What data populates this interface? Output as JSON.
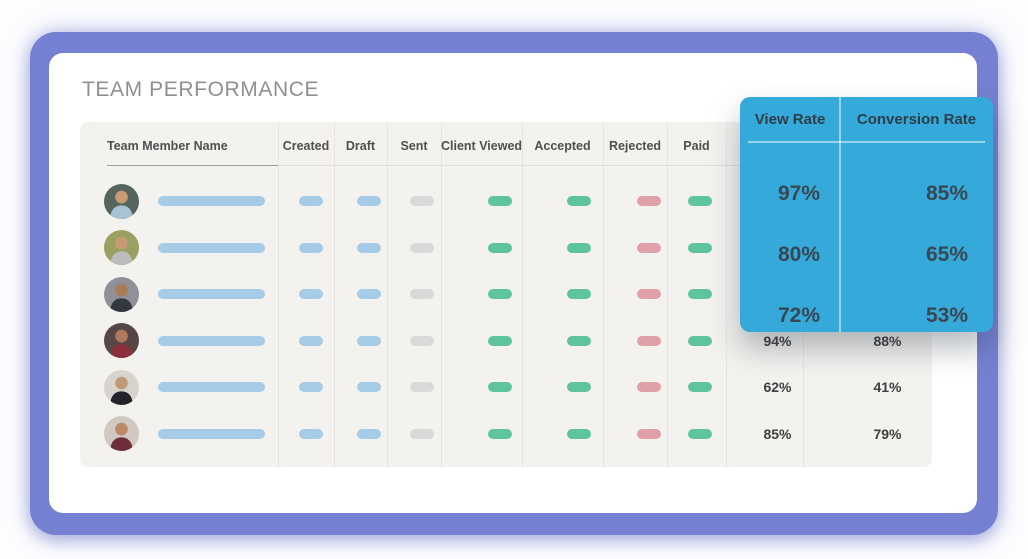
{
  "title": "TEAM PERFORMANCE",
  "colors": {
    "frame_purple": "#7680d2",
    "card_white": "#ffffff",
    "panel_bg": "#f4f2ef",
    "pill_blue": "#a6cbe7",
    "pill_gray": "#d9d9d9",
    "pill_green": "#5ec49e",
    "pill_red": "#dfa0a8",
    "name_bar_blue": "#a6cbe7",
    "popup_blue": "#35a9d9",
    "title_gray": "#909090",
    "percent_text": "#3e3e3e"
  },
  "table": {
    "columns": [
      {
        "id": "name",
        "label": "Team Member Name",
        "type": "name"
      },
      {
        "id": "created",
        "label": "Created",
        "type": "pill",
        "pill": "blue"
      },
      {
        "id": "draft",
        "label": "Draft",
        "type": "pill",
        "pill": "blue"
      },
      {
        "id": "sent",
        "label": "Sent",
        "type": "pill",
        "pill": "gray"
      },
      {
        "id": "client_viewed",
        "label": "Client Viewed",
        "type": "pill",
        "pill": "green"
      },
      {
        "id": "accepted",
        "label": "Accepted",
        "type": "pill",
        "pill": "green"
      },
      {
        "id": "rejected",
        "label": "Rejected",
        "type": "pill",
        "pill": "red"
      },
      {
        "id": "paid",
        "label": "Paid",
        "type": "pill",
        "pill": "green"
      },
      {
        "id": "view_rate",
        "label": "",
        "type": "percent"
      },
      {
        "id": "conversion_rate",
        "label": "",
        "type": "percent"
      }
    ],
    "rows": [
      {
        "avatar": {
          "bg": "#55645e",
          "skin": "#c99b72",
          "shirt": "#a9c3d6"
        },
        "view_rate": "",
        "conversion_rate": ""
      },
      {
        "avatar": {
          "bg": "#9aa061",
          "skin": "#c89b77",
          "shirt": "#bcbcbc"
        },
        "view_rate": "",
        "conversion_rate": ""
      },
      {
        "avatar": {
          "bg": "#8f9196",
          "skin": "#a97c57",
          "shirt": "#33383e"
        },
        "view_rate": "",
        "conversion_rate": ""
      },
      {
        "avatar": {
          "bg": "#574646",
          "skin": "#b07a5a",
          "shirt": "#8e2f3c"
        },
        "view_rate": "94%",
        "conversion_rate": "88%"
      },
      {
        "avatar": {
          "bg": "#d8d4cd",
          "skin": "#c09a77",
          "shirt": "#23232b"
        },
        "view_rate": "62%",
        "conversion_rate": "41%"
      },
      {
        "avatar": {
          "bg": "#cfc9c2",
          "skin": "#bb8b68",
          "shirt": "#6e2f3a"
        },
        "view_rate": "85%",
        "conversion_rate": "79%"
      }
    ]
  },
  "popup": {
    "columns": [
      {
        "header": "View Rate",
        "values": [
          "97%",
          "80%",
          "72%"
        ]
      },
      {
        "header": "Conversion Rate",
        "values": [
          "85%",
          "65%",
          "53%"
        ]
      }
    ]
  }
}
